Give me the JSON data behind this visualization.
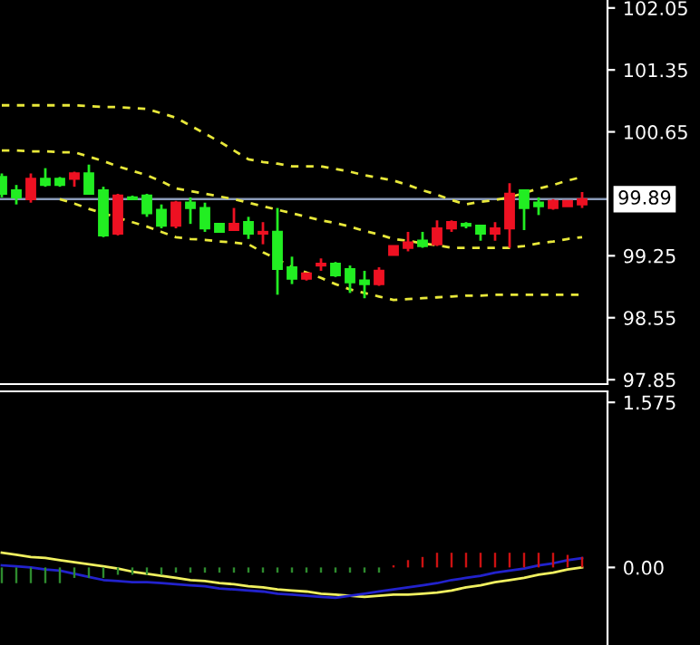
{
  "chart_data": [
    {
      "type": "candlestick",
      "categories": [
        null,
        null,
        null,
        null,
        null,
        null,
        null,
        null,
        null,
        null,
        null,
        null,
        null,
        null,
        null,
        null,
        null,
        null,
        null,
        null,
        null,
        null,
        null,
        null,
        null,
        null,
        null,
        null,
        null,
        null,
        null,
        null,
        null,
        null,
        null,
        null,
        null,
        null,
        null,
        null,
        null
      ],
      "ohlc": [
        [
          100.14,
          100.18,
          99.91,
          99.95
        ],
        [
          99.99,
          100.05,
          99.83,
          99.91
        ],
        [
          99.89,
          100.18,
          99.85,
          100.12
        ],
        [
          100.12,
          100.24,
          100.03,
          100.05
        ],
        [
          100.12,
          100.14,
          100.03,
          100.05
        ],
        [
          100.12,
          100.2,
          100.03,
          100.18
        ],
        [
          100.18,
          100.28,
          99.95,
          99.95
        ],
        [
          99.99,
          100.03,
          99.46,
          99.48
        ],
        [
          99.5,
          99.95,
          99.48,
          99.93
        ],
        [
          99.91,
          99.93,
          99.89,
          99.89
        ],
        [
          99.93,
          99.95,
          99.69,
          99.73
        ],
        [
          99.77,
          99.83,
          99.56,
          99.59
        ],
        [
          99.59,
          99.87,
          99.56,
          99.85
        ],
        [
          99.85,
          99.91,
          99.61,
          99.79
        ],
        [
          99.79,
          99.85,
          99.52,
          99.56
        ],
        [
          99.61,
          99.61,
          99.52,
          99.52
        ],
        [
          99.54,
          99.79,
          99.54,
          99.61
        ],
        [
          99.63,
          99.69,
          99.44,
          99.5
        ],
        [
          99.5,
          99.63,
          99.38,
          99.52
        ],
        [
          99.52,
          99.79,
          98.81,
          99.1
        ],
        [
          99.12,
          99.24,
          98.93,
          98.99
        ],
        [
          98.99,
          99.05,
          98.97,
          99.05
        ],
        [
          99.14,
          99.22,
          99.08,
          99.16
        ],
        [
          99.16,
          99.18,
          99.01,
          99.03
        ],
        [
          99.1,
          99.14,
          98.83,
          98.95
        ],
        [
          98.97,
          99.08,
          98.77,
          98.93
        ],
        [
          98.93,
          99.12,
          98.91,
          99.08
        ],
        [
          99.26,
          99.36,
          99.26,
          99.36
        ],
        [
          99.34,
          99.52,
          99.3,
          99.4
        ],
        [
          99.42,
          99.52,
          99.34,
          99.36
        ],
        [
          99.38,
          99.65,
          99.36,
          99.56
        ],
        [
          99.56,
          99.65,
          99.52,
          99.63
        ],
        [
          99.61,
          99.63,
          99.56,
          99.59
        ],
        [
          99.59,
          99.59,
          99.42,
          99.5
        ],
        [
          99.5,
          99.63,
          99.42,
          99.56
        ],
        [
          99.56,
          100.07,
          99.34,
          99.95
        ],
        [
          99.99,
          99.99,
          99.54,
          99.79
        ],
        [
          99.85,
          99.91,
          99.71,
          99.81
        ],
        [
          99.79,
          99.89,
          99.77,
          99.87
        ],
        [
          99.81,
          99.87,
          99.81,
          99.87
        ],
        [
          99.83,
          99.97,
          99.79,
          99.89
        ]
      ],
      "colors": [
        "#22ee22",
        "#22ee22",
        "#ee1122",
        "#22ee22",
        "#22ee22",
        "#ee1122",
        "#22ee22",
        "#22ee22",
        "#ee1122",
        "#22ee22",
        "#22ee22",
        "#22ee22",
        "#ee1122",
        "#22ee22",
        "#22ee22",
        "#22ee22",
        "#ee1122",
        "#22ee22",
        "#ee1122",
        "#22ee22",
        "#22ee22",
        "#ee1122",
        "#ee1122",
        "#22ee22",
        "#22ee22",
        "#22ee22",
        "#ee1122",
        "#ee1122",
        "#ee1122",
        "#22ee22",
        "#ee1122",
        "#ee1122",
        "#22ee22",
        "#22ee22",
        "#ee1122",
        "#ee1122",
        "#22ee22",
        "#22ee22",
        "#ee1122",
        "#ee1122",
        "#ee1122"
      ],
      "series": [
        {
          "type": "line",
          "color": "#e8e83a",
          "line_style": "dashed",
          "values": [
            100.95,
            100.95,
            100.95,
            100.95,
            100.95,
            100.95,
            100.94,
            100.93,
            100.93,
            100.92,
            100.91,
            100.86,
            100.81,
            100.72,
            100.63,
            100.54,
            100.44,
            100.34,
            100.31,
            100.29,
            100.26,
            100.26,
            100.26,
            100.23,
            100.2,
            100.16,
            100.13,
            100.1,
            100.05,
            99.99,
            99.94,
            99.88,
            99.83,
            99.86,
            99.88,
            99.91,
            99.96,
            100.01,
            100.05,
            100.1,
            100.14
          ]
        },
        {
          "type": "line",
          "color": "#e8e83a",
          "line_style": "dashed",
          "values": [
            100.44,
            100.44,
            100.43,
            100.43,
            100.42,
            100.42,
            100.37,
            100.32,
            100.26,
            100.21,
            100.16,
            100.09,
            100.01,
            99.98,
            99.95,
            99.92,
            99.89,
            99.85,
            99.81,
            99.77,
            99.73,
            99.69,
            99.65,
            99.62,
            99.58,
            99.53,
            99.49,
            99.44,
            99.42,
            99.39,
            99.37,
            99.34,
            99.34,
            99.34,
            99.34,
            99.34,
            99.36,
            99.39,
            99.41,
            99.44,
            99.46
          ]
        },
        {
          "type": "line",
          "color": "#e8e83a",
          "line_style": "dashed",
          "values": [
            null,
            null,
            null,
            null,
            99.89,
            99.84,
            99.78,
            99.73,
            99.68,
            99.63,
            99.58,
            99.52,
            99.46,
            99.44,
            99.43,
            99.41,
            99.4,
            99.38,
            99.29,
            99.21,
            99.12,
            99.06,
            99.0,
            98.93,
            98.87,
            98.83,
            98.79,
            98.75,
            98.76,
            98.77,
            98.78,
            98.79,
            98.8,
            98.8,
            98.81,
            98.81,
            98.81,
            98.81,
            98.81,
            98.81,
            98.81
          ]
        }
      ],
      "ylim": [
        97.8,
        102.14
      ],
      "yticks": [
        97.85,
        98.55,
        99.25,
        100.65,
        101.35,
        102.05
      ],
      "ref_lines": [
        {
          "axis": "y",
          "value": 99.89,
          "label": "99.89",
          "color": "#8a9ab8",
          "line_style": "solid"
        }
      ],
      "tick_labels": "y"
    },
    {
      "type": "bar",
      "categories": [
        null,
        null,
        null,
        null,
        null,
        null,
        null,
        null,
        null,
        null,
        null,
        null,
        null,
        null,
        null,
        null,
        null,
        null,
        null,
        null,
        null,
        null,
        null,
        null,
        null,
        null,
        null,
        null,
        null,
        null,
        null,
        null,
        null,
        null,
        null,
        null,
        null,
        null,
        null,
        null,
        null
      ],
      "values": [
        -0.15,
        -0.15,
        -0.15,
        -0.15,
        -0.15,
        -0.1,
        -0.1,
        -0.1,
        -0.07,
        -0.07,
        -0.07,
        -0.07,
        -0.05,
        -0.05,
        -0.05,
        -0.05,
        -0.05,
        -0.05,
        -0.05,
        -0.05,
        -0.05,
        -0.05,
        -0.05,
        -0.05,
        -0.05,
        -0.05,
        -0.05,
        0.02,
        0.07,
        0.1,
        0.14,
        0.14,
        0.14,
        0.14,
        0.14,
        0.14,
        0.14,
        0.14,
        0.14,
        0.12,
        0.1
      ],
      "colors": [
        "#2e8b2e",
        "#2e8b2e",
        "#2e8b2e",
        "#2e8b2e",
        "#2e8b2e",
        "#2e8b2e",
        "#2e8b2e",
        "#2e8b2e",
        "#2e8b2e",
        "#2e8b2e",
        "#2e8b2e",
        "#2e8b2e",
        "#2e8b2e",
        "#2e8b2e",
        "#2e8b2e",
        "#2e8b2e",
        "#2e8b2e",
        "#2e8b2e",
        "#2e8b2e",
        "#2e8b2e",
        "#2e8b2e",
        "#2e8b2e",
        "#2e8b2e",
        "#2e8b2e",
        "#2e8b2e",
        "#2e8b2e",
        "#2e8b2e",
        "#cc1111",
        "#cc1111",
        "#cc1111",
        "#cc1111",
        "#cc1111",
        "#cc1111",
        "#cc1111",
        "#cc1111",
        "#cc1111",
        "#cc1111",
        "#cc1111",
        "#cc1111",
        "#cc1111",
        "#cc1111"
      ],
      "series": [
        {
          "type": "line",
          "color": "#f0f060",
          "line_style": "solid",
          "values": [
            0.14,
            0.12,
            0.1,
            0.09,
            0.07,
            0.05,
            0.03,
            0.01,
            -0.01,
            -0.04,
            -0.06,
            -0.08,
            -0.1,
            -0.12,
            -0.13,
            -0.15,
            -0.16,
            -0.18,
            -0.19,
            -0.21,
            -0.22,
            -0.23,
            -0.25,
            -0.26,
            -0.27,
            -0.28,
            -0.27,
            -0.26,
            -0.26,
            -0.25,
            -0.24,
            -0.22,
            -0.19,
            -0.17,
            -0.14,
            -0.12,
            -0.1,
            -0.07,
            -0.05,
            -0.02,
            0.0
          ]
        },
        {
          "type": "line",
          "color": "#2222cc",
          "line_style": "solid",
          "values": [
            0.02,
            0.01,
            0.0,
            -0.02,
            -0.03,
            -0.06,
            -0.09,
            -0.12,
            -0.13,
            -0.14,
            -0.14,
            -0.15,
            -0.16,
            -0.17,
            -0.18,
            -0.2,
            -0.21,
            -0.22,
            -0.23,
            -0.25,
            -0.26,
            -0.27,
            -0.28,
            -0.29,
            -0.27,
            -0.25,
            -0.23,
            -0.21,
            -0.19,
            -0.17,
            -0.15,
            -0.12,
            -0.1,
            -0.08,
            -0.05,
            -0.03,
            -0.01,
            0.02,
            0.04,
            0.07,
            0.09
          ]
        }
      ],
      "ylim": [
        -0.74,
        1.68
      ],
      "yticks": [
        {
          "value": 0,
          "label": "0.00"
        },
        1.575
      ],
      "tick_labels": "y"
    }
  ]
}
